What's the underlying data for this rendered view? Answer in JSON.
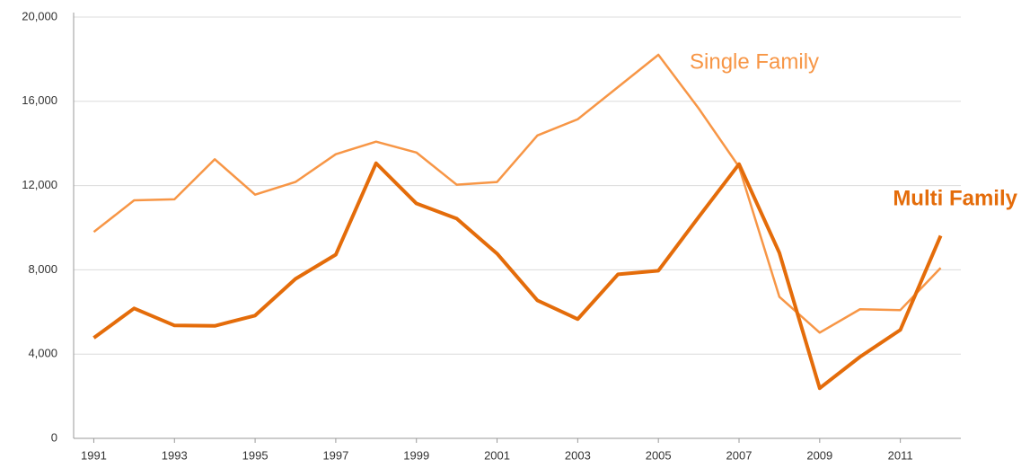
{
  "chart_data": {
    "type": "line",
    "x": [
      1991,
      1992,
      1993,
      1994,
      1995,
      1996,
      1997,
      1998,
      1999,
      2000,
      2001,
      2002,
      2003,
      2004,
      2005,
      2006,
      2007,
      2008,
      2009,
      2010,
      2011,
      2012
    ],
    "series": [
      {
        "name": "Single Family",
        "color": "#f79646",
        "width": 2.5,
        "values": [
          9800,
          11300,
          11350,
          13250,
          11570,
          12170,
          13490,
          14085,
          13570,
          12040,
          12170,
          14380,
          15150,
          16680,
          18210,
          15660,
          12890,
          6720,
          5020,
          6130,
          6090,
          8090
        ]
      },
      {
        "name": "Multi Family",
        "color": "#e46c0a",
        "width": 4,
        "values": [
          4770,
          6170,
          5360,
          5340,
          5830,
          7570,
          8720,
          13060,
          11150,
          10430,
          8770,
          6550,
          5660,
          7790,
          7960,
          10510,
          13020,
          8810,
          2380,
          3870,
          5150,
          9620
        ]
      }
    ],
    "xlim": [
      1990.5,
      2012.5
    ],
    "xticks": [
      1991,
      1993,
      1995,
      1997,
      1999,
      2001,
      2003,
      2005,
      2007,
      2009,
      2011
    ],
    "ylim": [
      0,
      20000
    ],
    "yticks": [
      0,
      {
        "value": 4000,
        "label": "4,000"
      },
      {
        "value": 8000,
        "label": "8,000"
      },
      {
        "value": 12000,
        "label": "12,000"
      },
      {
        "value": 16000,
        "label": "16,000"
      },
      {
        "value": 20000,
        "label": "20,000"
      }
    ],
    "grid": true
  }
}
